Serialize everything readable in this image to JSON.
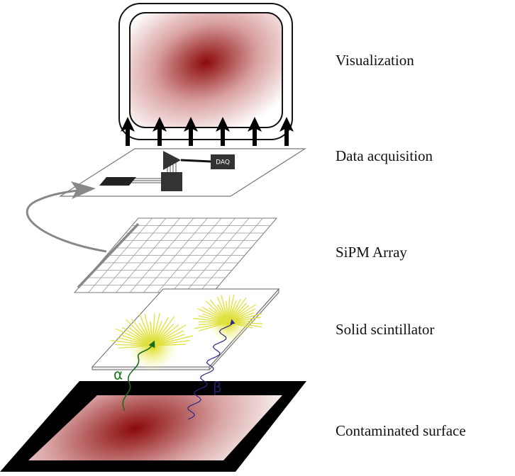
{
  "labels": [
    "Visualization",
    "Data acquisition",
    "SiPM Array",
    "Solid scintillator",
    "Contaminated surface"
  ],
  "daq": "DAQ",
  "alpha": "α",
  "beta": "β"
}
